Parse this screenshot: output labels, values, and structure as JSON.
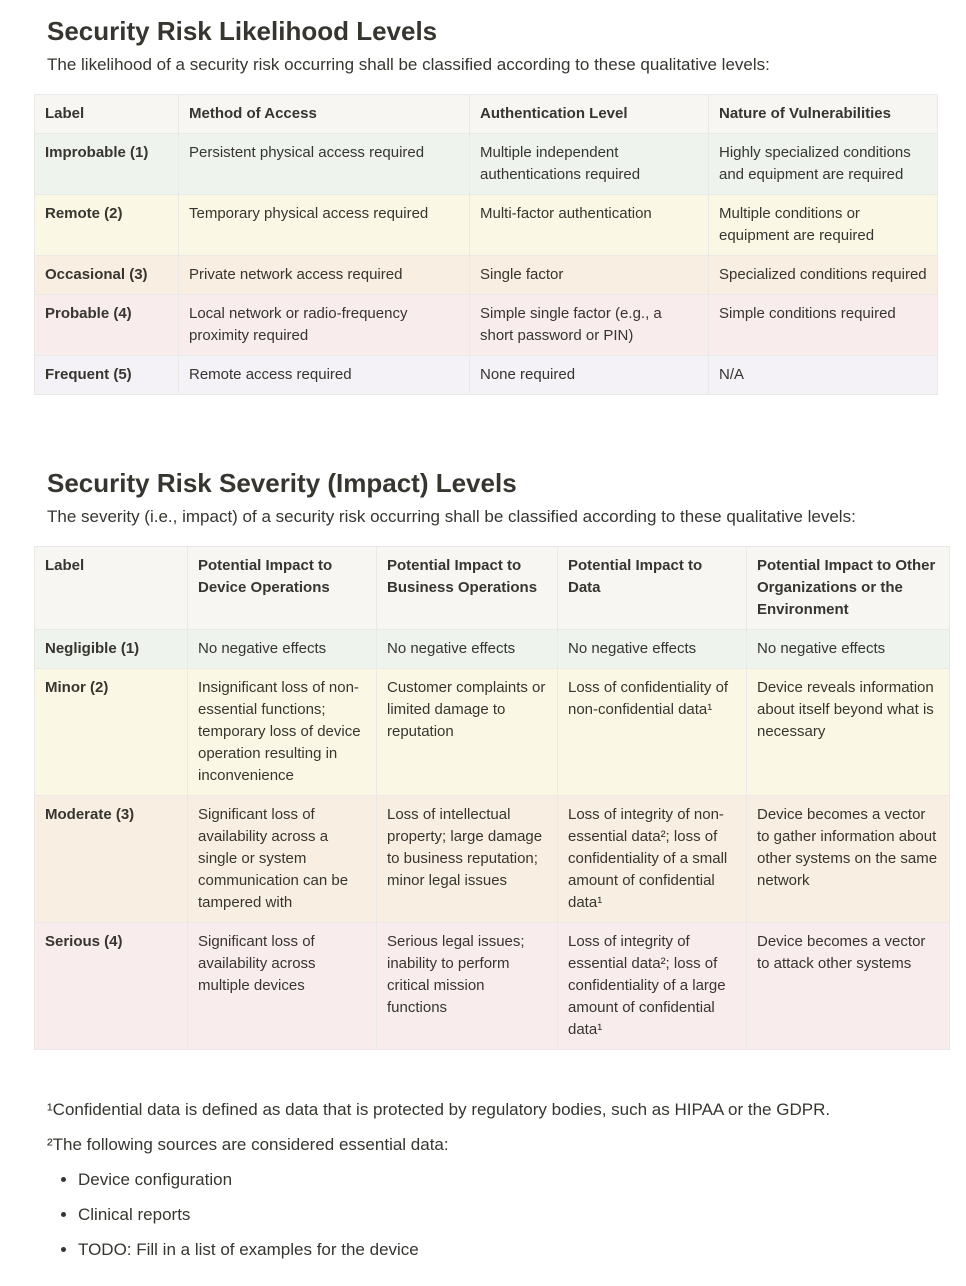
{
  "sections": [
    {
      "title": "Security Risk Likelihood Levels",
      "intro": "The likelihood of a security risk occurring shall be classified according to these qualitative levels:",
      "table": {
        "header": [
          "Label",
          "Method of Access",
          "Authentication Level",
          "Nature of Vulnerabilities"
        ],
        "rows": [
          [
            "Improbable (1)",
            "Persistent physical access required",
            "Multiple independent authentications required",
            "Highly specialized conditions and equipment are required"
          ],
          [
            "Remote (2)",
            "Temporary physical access required",
            "Multi-factor authentication",
            "Multiple conditions or equipment are required"
          ],
          [
            "Occasional (3)",
            "Private network access required",
            "Single factor",
            "Specialized conditions required"
          ],
          [
            "Probable (4)",
            "Local network or radio-frequency proximity required",
            "Simple single factor (e.g., a short password or PIN)",
            "Simple conditions required"
          ],
          [
            "Frequent (5)",
            "Remote access required",
            "None required",
            "N/A"
          ]
        ]
      }
    },
    {
      "title": "Security Risk Severity (Impact) Levels",
      "intro": "The severity (i.e., impact) of a security risk occurring shall be classified according to these qualitative levels:",
      "table": {
        "header": [
          "Label",
          "Potential Impact to Device Operations",
          "Potential Impact to Business Operations",
          "Potential Impact to Data",
          "Potential Impact to Other Organizations or the Environment"
        ],
        "rows": [
          [
            "Negligible (1)",
            "No negative effects",
            "No negative effects",
            "No negative effects",
            "No negative effects"
          ],
          [
            "Minor (2)",
            "Insignificant loss of non-essential functions; temporary loss of device operation resulting in inconvenience",
            "Customer complaints or limited damage to reputation",
            "Loss of confidentiality of non-confidential data¹",
            "Device reveals information about itself beyond what is necessary"
          ],
          [
            "Moderate (3)",
            "Significant loss of availability across a single or system communication can be tampered with",
            "Loss of intellectual property; large damage to business reputation; minor legal issues",
            "Loss of integrity of non-essential data²; loss of confidentiality of a small amount of confidential data¹",
            "Device becomes a vector to gather information about other systems on the same network"
          ],
          [
            "Serious (4)",
            "Significant loss of availability across multiple devices",
            "Serious legal issues; inability to perform critical mission functions",
            "Loss of integrity of essential data²; loss of confidentiality of a large amount of confidential data¹",
            "Device becomes a vector to attack other systems"
          ]
        ]
      }
    }
  ],
  "footnotes": [
    "¹Confidential data is defined as data that is protected by regulatory bodies, such as HIPAA or the GDPR.",
    "²The following sources are considered essential data:"
  ],
  "essential_data": [
    "Device configuration",
    "Clinical reports",
    "TODO: Fill in a list of examples for the device"
  ]
}
